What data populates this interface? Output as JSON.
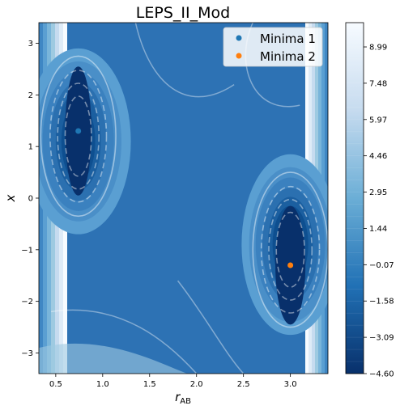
{
  "chart_data": {
    "type": "contour",
    "title": "LEPS_II_Mod",
    "xlabel": "r_AB",
    "ylabel": "x",
    "xlim": [
      0.32,
      3.4
    ],
    "ylim": [
      -3.4,
      3.4
    ],
    "x_ticks": [
      "0.5",
      "1.0",
      "1.5",
      "2.0",
      "2.5",
      "3.0"
    ],
    "y_ticks": [
      "3",
      "2",
      "1",
      "0",
      "−1",
      "−2",
      "−3"
    ],
    "colorbar": {
      "range": [
        -4.6,
        10.0
      ],
      "ticks": [
        "8.99",
        "7.48",
        "5.97",
        "4.46",
        "2.95",
        "1.44",
        "−0.07",
        "−1.58",
        "−3.09",
        "−4.60"
      ],
      "colormap": "Blues_r",
      "colors": [
        "#08306b",
        "#2171b5",
        "#6baed6",
        "#c6dbef",
        "#f7fbff"
      ]
    },
    "series": [
      {
        "name": "Minima 1",
        "x": [
          0.74
        ],
        "y": [
          1.3
        ],
        "color": "#1f77b4"
      },
      {
        "name": "Minima 2",
        "x": [
          3.0
        ],
        "y": [
          -1.3
        ],
        "color": "#ff7f0e"
      }
    ],
    "legend_position": "top-right",
    "grid": false
  }
}
